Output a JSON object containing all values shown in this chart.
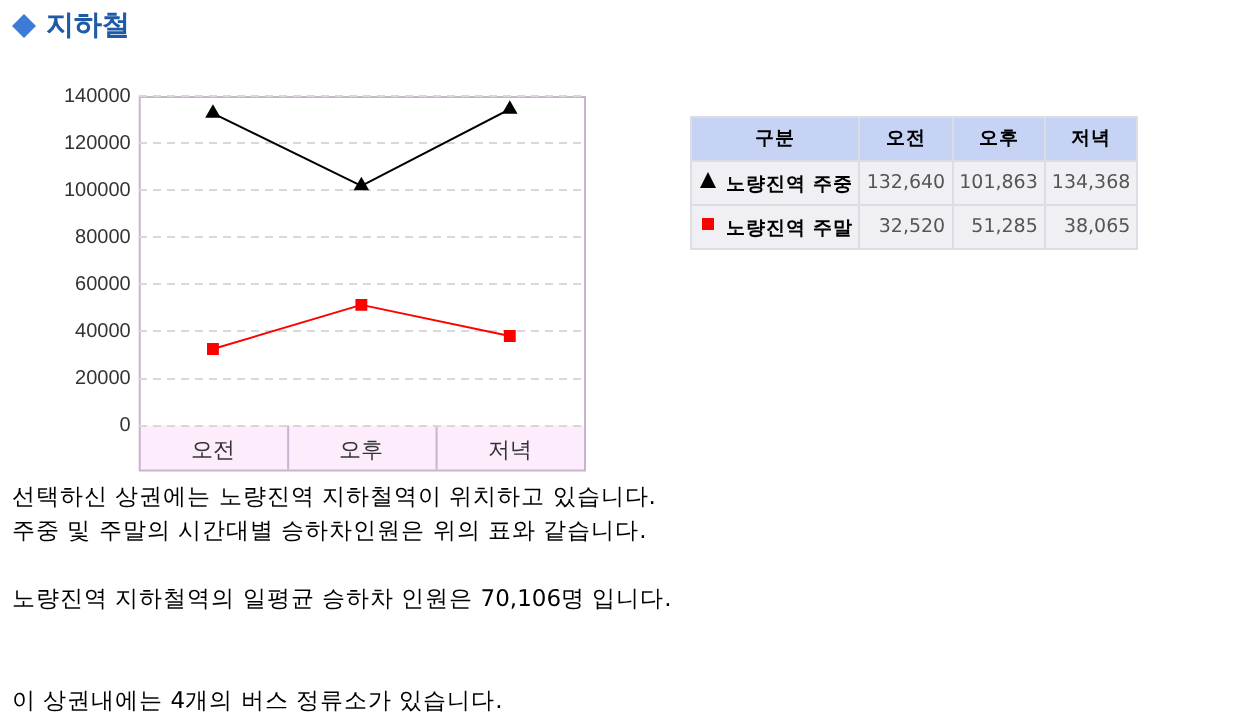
{
  "chart_data": {
    "type": "line",
    "title": "지하철",
    "legend_title": "구분",
    "categories": [
      "오전",
      "오후",
      "저녁"
    ],
    "series": [
      {
        "name": "노량진역 주중",
        "color": "#000000",
        "marker": "triangle",
        "values": [
          132640,
          101863,
          134368
        ]
      },
      {
        "name": "노량진역 주말",
        "color": "#ff0000",
        "marker": "square",
        "values": [
          32520,
          51285,
          38065
        ]
      }
    ],
    "value_labels": [
      [
        "132,640",
        "101,863",
        "134,368"
      ],
      [
        "32,520",
        "51,285",
        "38,065"
      ]
    ],
    "ylim": [
      0,
      140000
    ],
    "yticks": [
      0,
      20000,
      40000,
      60000,
      80000,
      100000,
      120000,
      140000
    ],
    "grid": "y",
    "legend": "right",
    "line_style": "solid",
    "annotations": [
      "선택하신 상권에는 노량진역 지하철역이 위치하고 있습니다.",
      "주중 및 주말의 시간대별 승하차인원은 위의 표와 같습니다.",
      "노량진역 지하철역의 일평균 승하차 인원은 70,106명 입니다.",
      "이 상권내에는 4개의 버스 정류소가 있습니다."
    ]
  }
}
